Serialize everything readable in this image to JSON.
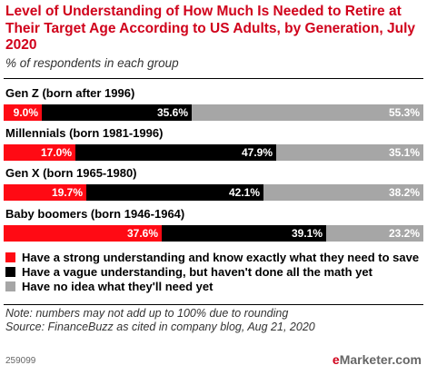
{
  "chart_data": {
    "type": "bar",
    "stacked": true,
    "orientation": "horizontal",
    "title": "Level of Understanding of How Much Is Needed to Retire at Their Target Age According to US Adults, by Generation, July 2020",
    "subtitle": "% of respondents in each group",
    "categories": [
      "Gen Z (born after 1996)",
      "Millennials (born 1981-1996)",
      "Gen X (born 1965-1980)",
      "Baby boomers (born 1946-1964)"
    ],
    "series": [
      {
        "name": "Have a strong understanding and know exactly what they need to save",
        "color": "#ff0a14",
        "values": [
          9.0,
          17.0,
          19.7,
          37.6
        ],
        "labels": [
          "9.0%",
          "17.0%",
          "19.7%",
          "37.6%"
        ]
      },
      {
        "name": "Have a vague understanding, but haven't done all the math yet",
        "color": "#000000",
        "values": [
          35.6,
          47.9,
          42.1,
          39.1
        ],
        "labels": [
          "35.6%",
          "47.9%",
          "42.1%",
          "39.1%"
        ]
      },
      {
        "name": "Have no idea what they'll need yet",
        "color": "#a6a6a6",
        "values": [
          55.3,
          35.1,
          38.2,
          23.2
        ],
        "labels": [
          "55.3%",
          "35.1%",
          "38.2%",
          "23.2%"
        ]
      }
    ],
    "legend": "bottom"
  },
  "footer": {
    "note": "Note: numbers may not add up to 100% due to rounding",
    "source": "Source: FinanceBuzz as cited in company blog, Aug 21, 2020",
    "chart_id": "259099",
    "logo_prefix": "e",
    "logo_rest": "Marketer",
    "logo_domain": ".com"
  }
}
